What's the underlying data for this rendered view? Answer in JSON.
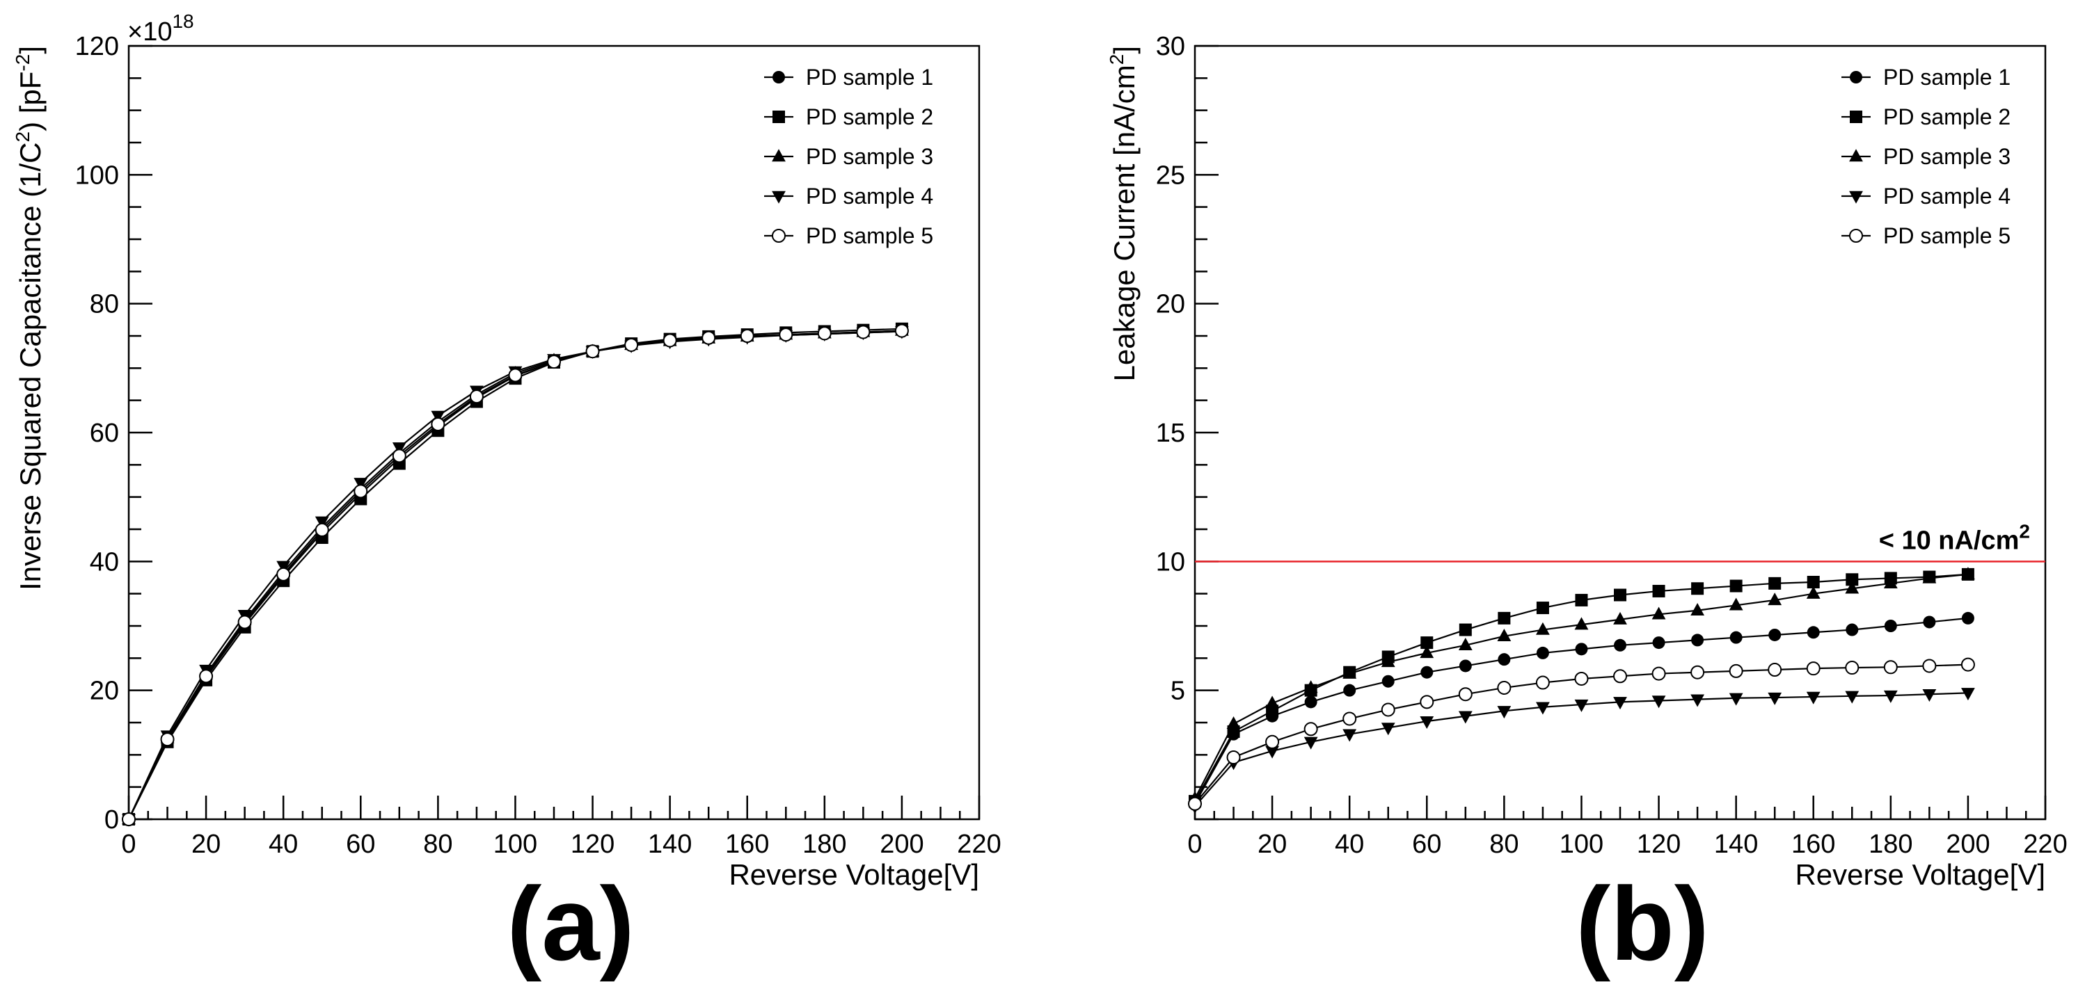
{
  "chart_data": [
    {
      "type": "line",
      "panel_label": "(a)",
      "xlabel": "Reverse Voltage[V]",
      "ylabel": "Inverse Squared Capacitance (1/C",
      "ylabel_sup": "2",
      "ylabel_mid": ") [pF",
      "ylabel_sup2": "-2",
      "ylabel_end": "]",
      "multiplier": "×10",
      "multiplier_exp": "18",
      "xlim": [
        0,
        220
      ],
      "ylim": [
        0,
        120
      ],
      "xticks": [
        "0",
        "20",
        "40",
        "60",
        "80",
        "100",
        "120",
        "140",
        "160",
        "180",
        "200",
        "220"
      ],
      "yticks": [
        "0",
        "20",
        "40",
        "60",
        "80",
        "100",
        "120"
      ],
      "x": [
        0,
        10,
        20,
        30,
        40,
        50,
        60,
        70,
        80,
        90,
        100,
        110,
        120,
        130,
        140,
        150,
        160,
        170,
        180,
        190,
        200
      ],
      "series": [
        {
          "name": "PD sample 1",
          "marker": "circle",
          "values": [
            0,
            12.3,
            22.0,
            30.3,
            37.7,
            44.5,
            50.5,
            56.0,
            61.0,
            65.4,
            68.8,
            71.0,
            72.6,
            73.7,
            74.3,
            74.6,
            74.9,
            75.1,
            75.3,
            75.5,
            75.7
          ]
        },
        {
          "name": "PD sample 2",
          "marker": "square",
          "values": [
            0,
            12.0,
            21.6,
            29.8,
            37.0,
            43.7,
            49.7,
            55.2,
            60.3,
            64.8,
            68.4,
            70.9,
            72.6,
            73.8,
            74.5,
            74.9,
            75.2,
            75.5,
            75.7,
            75.9,
            76.1
          ]
        },
        {
          "name": "PD sample 3",
          "marker": "triangle-up",
          "values": [
            0,
            12.6,
            22.5,
            30.9,
            38.4,
            45.3,
            51.3,
            56.8,
            61.7,
            65.9,
            69.2,
            71.2,
            72.6,
            73.6,
            74.2,
            74.6,
            74.9,
            75.2,
            75.4,
            75.6,
            75.8
          ]
        },
        {
          "name": "PD sample 4",
          "marker": "triangle-down",
          "values": [
            0,
            13.0,
            23.2,
            31.7,
            39.3,
            46.2,
            52.2,
            57.7,
            62.6,
            66.5,
            69.5,
            71.4,
            72.6,
            73.5,
            74.1,
            74.5,
            74.8,
            75.1,
            75.3,
            75.5,
            75.7
          ]
        },
        {
          "name": "PD sample 5",
          "marker": "open-circle",
          "values": [
            0,
            12.4,
            22.2,
            30.6,
            38.0,
            44.9,
            50.9,
            56.4,
            61.3,
            65.6,
            68.9,
            71.0,
            72.6,
            73.6,
            74.3,
            74.7,
            75.0,
            75.2,
            75.4,
            75.6,
            75.8
          ]
        }
      ]
    },
    {
      "type": "line",
      "panel_label": "(b)",
      "xlabel": "Reverse Voltage[V]",
      "ylabel": "Leakage Current [nA/cm",
      "ylabel_sup": "2",
      "ylabel_end": "]",
      "xlim": [
        0,
        220
      ],
      "ylim": [
        0,
        30
      ],
      "xticks": [
        "0",
        "20",
        "40",
        "60",
        "80",
        "100",
        "120",
        "140",
        "160",
        "180",
        "200",
        "220"
      ],
      "yticks": [
        "5",
        "10",
        "15",
        "20",
        "25",
        "30"
      ],
      "limit_line": {
        "value": 10,
        "color": "#e8232a",
        "label": "< 10 nA/cm",
        "label_sup": "2"
      },
      "x": [
        0,
        10,
        20,
        30,
        40,
        50,
        60,
        70,
        80,
        90,
        100,
        110,
        120,
        130,
        140,
        150,
        160,
        170,
        180,
        190,
        200
      ],
      "series": [
        {
          "name": "PD sample 1",
          "marker": "circle",
          "values": [
            0.6,
            3.3,
            4.0,
            4.55,
            5.0,
            5.35,
            5.7,
            5.95,
            6.2,
            6.45,
            6.6,
            6.75,
            6.85,
            6.95,
            7.05,
            7.15,
            7.25,
            7.35,
            7.5,
            7.65,
            7.8
          ]
        },
        {
          "name": "PD sample 2",
          "marker": "square",
          "values": [
            0.7,
            3.4,
            4.2,
            5.0,
            5.7,
            6.3,
            6.85,
            7.35,
            7.8,
            8.2,
            8.5,
            8.7,
            8.85,
            8.95,
            9.05,
            9.15,
            9.2,
            9.3,
            9.35,
            9.4,
            9.5
          ]
        },
        {
          "name": "PD sample 3",
          "marker": "triangle-up",
          "values": [
            0.8,
            3.7,
            4.5,
            5.1,
            5.65,
            6.1,
            6.45,
            6.75,
            7.1,
            7.35,
            7.55,
            7.75,
            7.95,
            8.1,
            8.3,
            8.5,
            8.75,
            8.95,
            9.15,
            9.35,
            9.5
          ]
        },
        {
          "name": "PD sample 4",
          "marker": "triangle-down",
          "values": [
            0.5,
            2.2,
            2.65,
            3.0,
            3.3,
            3.55,
            3.8,
            4.0,
            4.2,
            4.35,
            4.45,
            4.55,
            4.6,
            4.65,
            4.7,
            4.72,
            4.75,
            4.78,
            4.8,
            4.85,
            4.9
          ]
        },
        {
          "name": "PD sample 5",
          "marker": "open-circle",
          "values": [
            0.6,
            2.4,
            3.0,
            3.5,
            3.9,
            4.25,
            4.55,
            4.85,
            5.1,
            5.3,
            5.45,
            5.55,
            5.65,
            5.7,
            5.75,
            5.8,
            5.85,
            5.88,
            5.9,
            5.95,
            6.0
          ]
        }
      ]
    }
  ]
}
